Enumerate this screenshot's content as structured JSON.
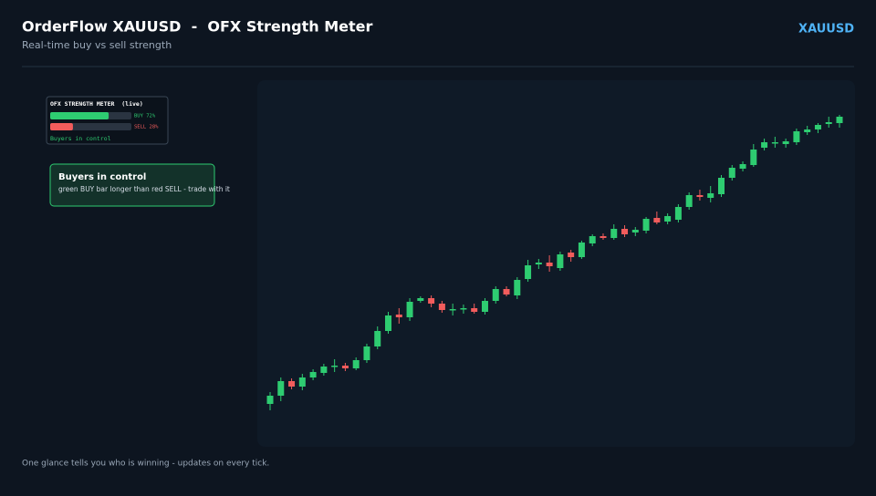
{
  "header": {
    "title": "OrderFlow XAUUSD  -  OFX Strength Meter",
    "subtitle": "Real-time buy vs sell strength",
    "symbol": "XAUUSD"
  },
  "meter": {
    "title": "OFX STRENGTH METER  (live)",
    "bars": [
      {
        "label": "BUY 72%",
        "value": 72,
        "color": "#2ecc71"
      },
      {
        "label": "SELL 28%",
        "value": 28,
        "color": "#f25c5c"
      }
    ],
    "status": "Buyers in control"
  },
  "callout": {
    "title": "Buyers in control",
    "text": "green BUY bar longer than red SELL - trade with it"
  },
  "footer": "One glance tells you who is winning - updates on every tick.",
  "chart_data": {
    "type": "candlestick",
    "up_color": "#2ecc71",
    "down_color": "#f25c5c",
    "ylim": [
      0,
      400
    ],
    "open": [
      47,
      56,
      72,
      66,
      76,
      81,
      88,
      89,
      86,
      95,
      110,
      127,
      145,
      142,
      160,
      163,
      157,
      150,
      151,
      152,
      148,
      160,
      173,
      166,
      184,
      200,
      202,
      196,
      213,
      208,
      223,
      231,
      229,
      239,
      235,
      237,
      251,
      247,
      249,
      263,
      276,
      273,
      277,
      295,
      305,
      309,
      328,
      333,
      332,
      334,
      345,
      348,
      354,
      355
    ],
    "close": [
      56,
      72,
      66,
      76,
      82,
      88,
      89,
      86,
      95,
      110,
      127,
      144,
      142,
      159,
      163,
      157,
      150,
      151,
      152,
      148,
      160,
      173,
      167,
      183,
      199,
      202,
      198,
      211,
      208,
      224,
      231,
      229,
      239,
      233,
      238,
      250,
      246,
      253,
      263,
      276,
      274,
      278,
      295,
      306,
      310,
      326,
      334,
      334,
      335,
      346,
      348,
      353,
      356,
      362
    ],
    "high": [
      60,
      76,
      75,
      80,
      85,
      91,
      96,
      92,
      98,
      113,
      132,
      148,
      152,
      163,
      165,
      166,
      160,
      157,
      156,
      157,
      163,
      176,
      176,
      186,
      205,
      206,
      210,
      214,
      216,
      226,
      233,
      234,
      244,
      243,
      241,
      252,
      258,
      256,
      266,
      279,
      282,
      286,
      298,
      309,
      313,
      332,
      338,
      340,
      338,
      349,
      352,
      355,
      362,
      364
    ],
    "low": [
      40,
      50,
      63,
      62,
      73,
      78,
      82,
      83,
      84,
      92,
      107,
      124,
      135,
      138,
      158,
      153,
      147,
      144,
      146,
      146,
      145,
      157,
      165,
      162,
      181,
      195,
      192,
      193,
      203,
      206,
      220,
      227,
      227,
      230,
      231,
      234,
      244,
      244,
      246,
      260,
      270,
      268,
      274,
      292,
      302,
      307,
      325,
      328,
      328,
      331,
      342,
      344,
      350,
      350
    ]
  }
}
